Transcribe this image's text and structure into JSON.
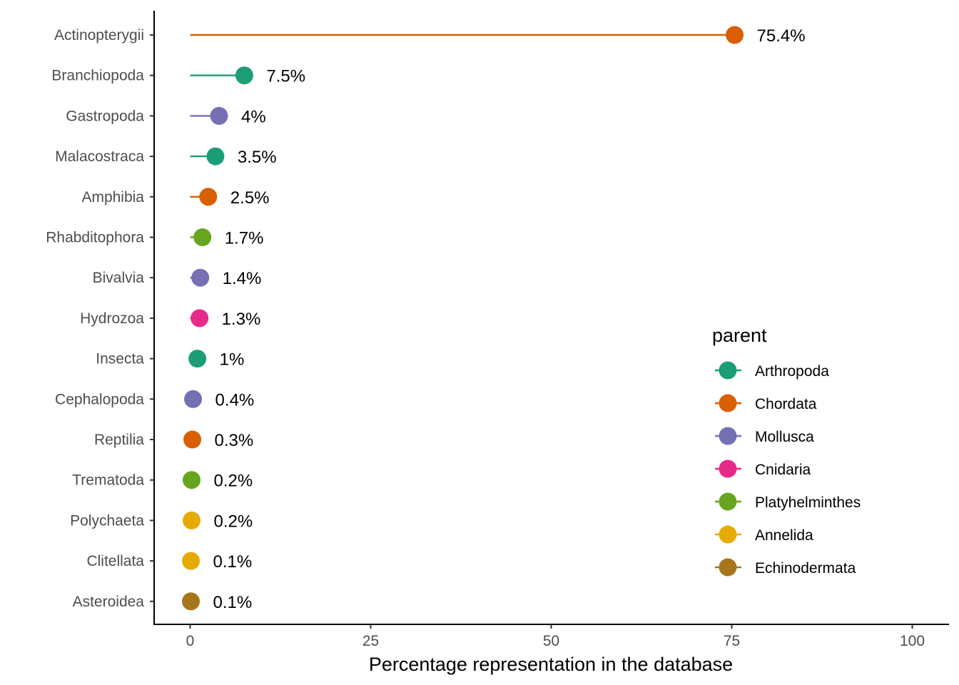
{
  "chart_data": {
    "type": "lollipop",
    "title": "",
    "xlabel": "Percentage representation in the database",
    "ylabel": "",
    "xlim": [
      -10,
      104
    ],
    "x_ticks": [
      0,
      25,
      50,
      75,
      100
    ],
    "grid": false,
    "legend": {
      "title": "parent",
      "placement": "right-bottom",
      "entries": [
        {
          "name": "Arthropoda",
          "color": "#1B9E77"
        },
        {
          "name": "Chordata",
          "color": "#D95F02"
        },
        {
          "name": "Mollusca",
          "color": "#7570B3"
        },
        {
          "name": "Cnidaria",
          "color": "#E7298A"
        },
        {
          "name": "Platyhelminthes",
          "color": "#66A61E"
        },
        {
          "name": "Annelida",
          "color": "#E6AB02"
        },
        {
          "name": "Echinodermata",
          "color": "#A6761D"
        }
      ]
    },
    "points": [
      {
        "category": "Actinopterygii",
        "value": 75.4,
        "label": "75.4%",
        "parent": "Chordata"
      },
      {
        "category": "Branchiopoda",
        "value": 7.5,
        "label": "7.5%",
        "parent": "Arthropoda"
      },
      {
        "category": "Gastropoda",
        "value": 4.0,
        "label": "4%",
        "parent": "Mollusca"
      },
      {
        "category": "Malacostraca",
        "value": 3.5,
        "label": "3.5%",
        "parent": "Arthropoda"
      },
      {
        "category": "Amphibia",
        "value": 2.5,
        "label": "2.5%",
        "parent": "Chordata"
      },
      {
        "category": "Rhabditophora",
        "value": 1.7,
        "label": "1.7%",
        "parent": "Platyhelminthes"
      },
      {
        "category": "Bivalvia",
        "value": 1.4,
        "label": "1.4%",
        "parent": "Mollusca"
      },
      {
        "category": "Hydrozoa",
        "value": 1.3,
        "label": "1.3%",
        "parent": "Cnidaria"
      },
      {
        "category": "Insecta",
        "value": 1.0,
        "label": "1%",
        "parent": "Arthropoda"
      },
      {
        "category": "Cephalopoda",
        "value": 0.4,
        "label": "0.4%",
        "parent": "Mollusca"
      },
      {
        "category": "Reptilia",
        "value": 0.3,
        "label": "0.3%",
        "parent": "Chordata"
      },
      {
        "category": "Trematoda",
        "value": 0.2,
        "label": "0.2%",
        "parent": "Platyhelminthes"
      },
      {
        "category": "Polychaeta",
        "value": 0.2,
        "label": "0.2%",
        "parent": "Annelida"
      },
      {
        "category": "Clitellata",
        "value": 0.1,
        "label": "0.1%",
        "parent": "Annelida"
      },
      {
        "category": "Asteroidea",
        "value": 0.1,
        "label": "0.1%",
        "parent": "Echinodermata"
      }
    ]
  }
}
